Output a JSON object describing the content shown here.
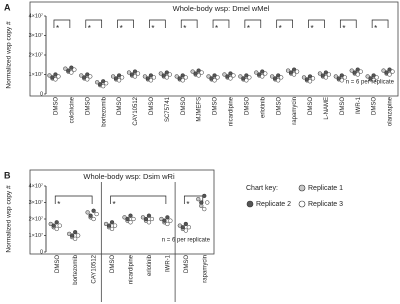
{
  "chart_data": [
    {
      "type": "scatter",
      "panel_label": "A",
      "title": "Whole-body wsp: Dmel wMel",
      "y_label": "Normalized wsp copy #",
      "note": "n = 6 per replicate",
      "categories": [
        "DMSO",
        "colchicine",
        "DMSO",
        "bortezomib",
        "DMSO",
        "CAY10512",
        "DMSO",
        "SC75741",
        "DMSO",
        "MJMEFS",
        "DMSO",
        "nicardipine",
        "DMSO",
        "erlotinib",
        "DMSO",
        "rapamycin",
        "DMSO",
        "L-NAME",
        "DMSO",
        "IWR-1",
        "DMSO",
        "olanzapine"
      ],
      "significance": [
        "*",
        null,
        "*",
        null,
        "*",
        null,
        "*",
        null,
        "*",
        null,
        "*",
        null,
        "*",
        null,
        "*",
        null,
        "*",
        null,
        "*",
        null,
        "*",
        null
      ],
      "ylim": [
        0,
        40000000.0
      ],
      "yticks": [
        0,
        {
          "value": 10000000.0,
          "label": "1×10⁷"
        },
        {
          "value": 20000000.0,
          "label": "2×10⁷"
        },
        {
          "value": 30000000.0,
          "label": "3×10⁷"
        },
        {
          "value": 40000000.0,
          "label": "4×10⁷"
        }
      ],
      "group_dividers": false,
      "series": [
        {
          "name": "Replicate 1",
          "color": "#c8c8c8",
          "values": [
            [
              9500000.0,
              8000000.0
            ],
            [
              13000000.0,
              11500000.0
            ],
            [
              9500000.0,
              8000000.0
            ],
            [
              6000000.0,
              4500000.0
            ],
            [
              9000000.0,
              7500000.0
            ],
            [
              11000000.0,
              9500000.0
            ],
            [
              9000000.0,
              7500000.0
            ],
            [
              10500000.0,
              9000000.0
            ],
            [
              9000000.0,
              7500000.0
            ],
            [
              11500000.0,
              10000000.0
            ],
            [
              9000000.0,
              7500000.0
            ],
            [
              10000000.0,
              8500000.0
            ],
            [
              9000000.0,
              7500000.0
            ],
            [
              11000000.0,
              9500000.0
            ],
            [
              9000000.0,
              7500000.0
            ],
            [
              12000000.0,
              10500000.0
            ],
            [
              8500000.0,
              7000000.0
            ],
            [
              10500000.0,
              9000000.0
            ],
            [
              9000000.0,
              7500000.0
            ],
            [
              12000000.0,
              10500000.0
            ],
            [
              9000000.0,
              7500000.0
            ],
            [
              12000000.0,
              10500000.0
            ]
          ]
        },
        {
          "name": "Replicate 2",
          "color": "#555555",
          "values": [
            [
              8500000.0,
              10000000.0
            ],
            [
              12000000.0,
              13500000.0
            ],
            [
              8500000.0,
              10000000.0
            ],
            [
              5000000.0,
              6500000.0
            ],
            [
              8000000.0,
              9500000.0
            ],
            [
              10000000.0,
              11500000.0
            ],
            [
              8000000.0,
              9500000.0
            ],
            [
              9500000.0,
              11000000.0
            ],
            [
              8000000.0,
              9500000.0
            ],
            [
              10500000.0,
              12000000.0
            ],
            [
              8000000.0,
              9500000.0
            ],
            [
              9000000.0,
              10500000.0
            ],
            [
              8000000.0,
              9500000.0
            ],
            [
              10000000.0,
              11500000.0
            ],
            [
              8000000.0,
              9500000.0
            ],
            [
              11000000.0,
              12500000.0
            ],
            [
              7500000.0,
              9000000.0
            ],
            [
              9500000.0,
              11000000.0
            ],
            [
              8000000.0,
              9500000.0
            ],
            [
              11000000.0,
              12500000.0
            ],
            [
              8000000.0,
              9500000.0
            ],
            [
              11000000.0,
              12500000.0
            ]
          ]
        },
        {
          "name": "Replicate 3",
          "color": "#ffffff",
          "values": [
            [
              7500000.0,
              9000000.0
            ],
            [
              11000000.0,
              12500000.0
            ],
            [
              7500000.0,
              9000000.0
            ],
            [
              4000000.0,
              5500000.0
            ],
            [
              7000000.0,
              8500000.0
            ],
            [
              9000000.0,
              10500000.0
            ],
            [
              7000000.0,
              8500000.0
            ],
            [
              8500000.0,
              10000000.0
            ],
            [
              7000000.0,
              8500000.0
            ],
            [
              9500000.0,
              11000000.0
            ],
            [
              7000000.0,
              8500000.0
            ],
            [
              8000000.0,
              9500000.0
            ],
            [
              7000000.0,
              8500000.0
            ],
            [
              9000000.0,
              10500000.0
            ],
            [
              7000000.0,
              8500000.0
            ],
            [
              10000000.0,
              11500000.0
            ],
            [
              6500000.0,
              8000000.0
            ],
            [
              8500000.0,
              10000000.0
            ],
            [
              7000000.0,
              8500000.0
            ],
            [
              10000000.0,
              11500000.0
            ],
            [
              7000000.0,
              8500000.0
            ],
            [
              10000000.0,
              11500000.0
            ]
          ]
        }
      ]
    },
    {
      "type": "scatter",
      "panel_label": "B",
      "title": "Whole-body wsp: Dsim wRi",
      "y_label": "Normalized wsp copy #",
      "note": "n = 6 per replicate",
      "legend_title": "Chart key:",
      "categories": [
        "DMSO",
        "bortezomib",
        "CAY10512",
        "DMSO",
        "nicardipine",
        "erlotinib",
        "IWR-1",
        "DMSO",
        "rapamycin"
      ],
      "significance": [
        "*",
        null,
        null,
        "*",
        null,
        null,
        null,
        "*",
        null
      ],
      "ylim": [
        0,
        40000000.0
      ],
      "yticks": [
        0,
        {
          "value": 10000000.0,
          "label": "1×10⁷"
        },
        {
          "value": 20000000.0,
          "label": "2×10⁷"
        },
        {
          "value": 30000000.0,
          "label": "3×10⁷"
        },
        {
          "value": 40000000.0,
          "label": "4×10⁷"
        }
      ],
      "group_dividers": true,
      "series": [
        {
          "name": "Replicate 1",
          "color": "#c8c8c8",
          "values": [
            [
              17000000.0,
              15000000.0
            ],
            [
              11000000.0,
              9000000.0
            ],
            [
              24000000.0,
              21000000.0
            ],
            [
              17000000.0,
              15000000.0
            ],
            [
              21000000.0,
              19000000.0
            ],
            [
              21000000.0,
              19000000.0
            ],
            [
              20000000.0,
              18000000.0
            ],
            [
              16000000.0,
              14000000.0
            ],
            [
              32000000.0,
              28000000.0
            ]
          ]
        },
        {
          "name": "Replicate 2",
          "color": "#555555",
          "values": [
            [
              16000000.0,
              18000000.0
            ],
            [
              10000000.0,
              12000000.0
            ],
            [
              22000000.0,
              25000000.0
            ],
            [
              16000000.0,
              18000000.0
            ],
            [
              20000000.0,
              22000000.0
            ],
            [
              20000000.0,
              22000000.0
            ],
            [
              19000000.0,
              21000000.0
            ],
            [
              15000000.0,
              17000000.0
            ],
            [
              30000000.0,
              34000000.0
            ]
          ]
        },
        {
          "name": "Replicate 3",
          "color": "#ffffff",
          "values": [
            [
              14000000.0,
              16000000.0
            ],
            [
              8000000.0,
              10000000.0
            ],
            [
              20000000.0,
              23000000.0
            ],
            [
              14000000.0,
              16000000.0
            ],
            [
              18000000.0,
              20000000.0
            ],
            [
              18000000.0,
              20000000.0
            ],
            [
              17000000.0,
              19000000.0
            ],
            [
              13000000.0,
              15000000.0
            ],
            [
              26000000.0,
              30000000.0
            ]
          ]
        }
      ]
    }
  ]
}
